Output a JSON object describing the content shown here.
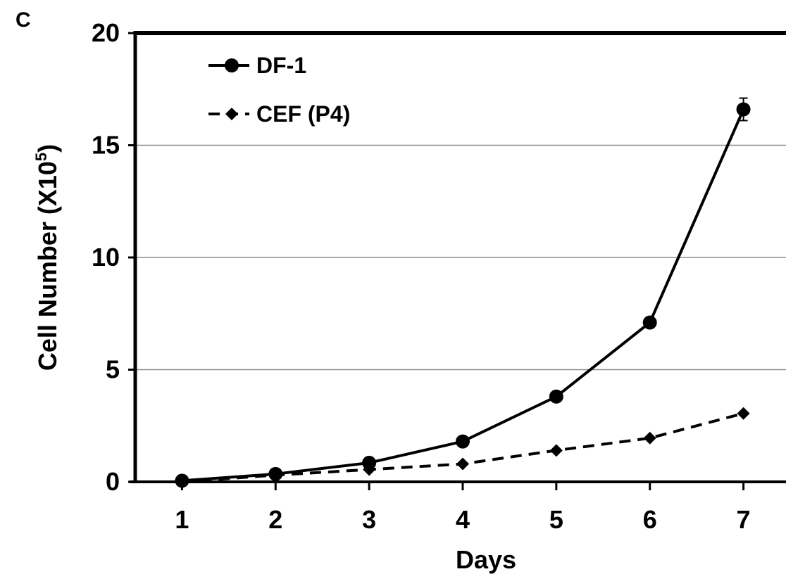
{
  "panel_label": "C",
  "chart_data": {
    "type": "line",
    "title": "",
    "xlabel": "Days",
    "ylabel": "Cell Number (X10",
    "ylabel_sup": "5",
    "ylabel_close": ")",
    "x": [
      1,
      2,
      3,
      4,
      5,
      6,
      7
    ],
    "xlim": [
      0.5,
      7.5
    ],
    "ylim": [
      0,
      20
    ],
    "yticks": [
      0,
      5,
      10,
      15,
      20
    ],
    "xticks": [
      1,
      2,
      3,
      4,
      5,
      6,
      7
    ],
    "grid": "horizontal",
    "legend_position": "top-left",
    "series": [
      {
        "name": "DF-1",
        "values": [
          0.05,
          0.35,
          0.85,
          1.8,
          3.8,
          7.1,
          16.6
        ],
        "error": [
          0,
          0,
          0,
          0,
          0,
          0,
          0.5
        ],
        "marker": "circle",
        "line": "solid",
        "color": "#000000"
      },
      {
        "name": "CEF (P4)",
        "values": [
          0.0,
          0.3,
          0.55,
          0.8,
          1.4,
          1.95,
          3.05
        ],
        "marker": "diamond",
        "line": "dashed",
        "color": "#000000"
      }
    ]
  }
}
